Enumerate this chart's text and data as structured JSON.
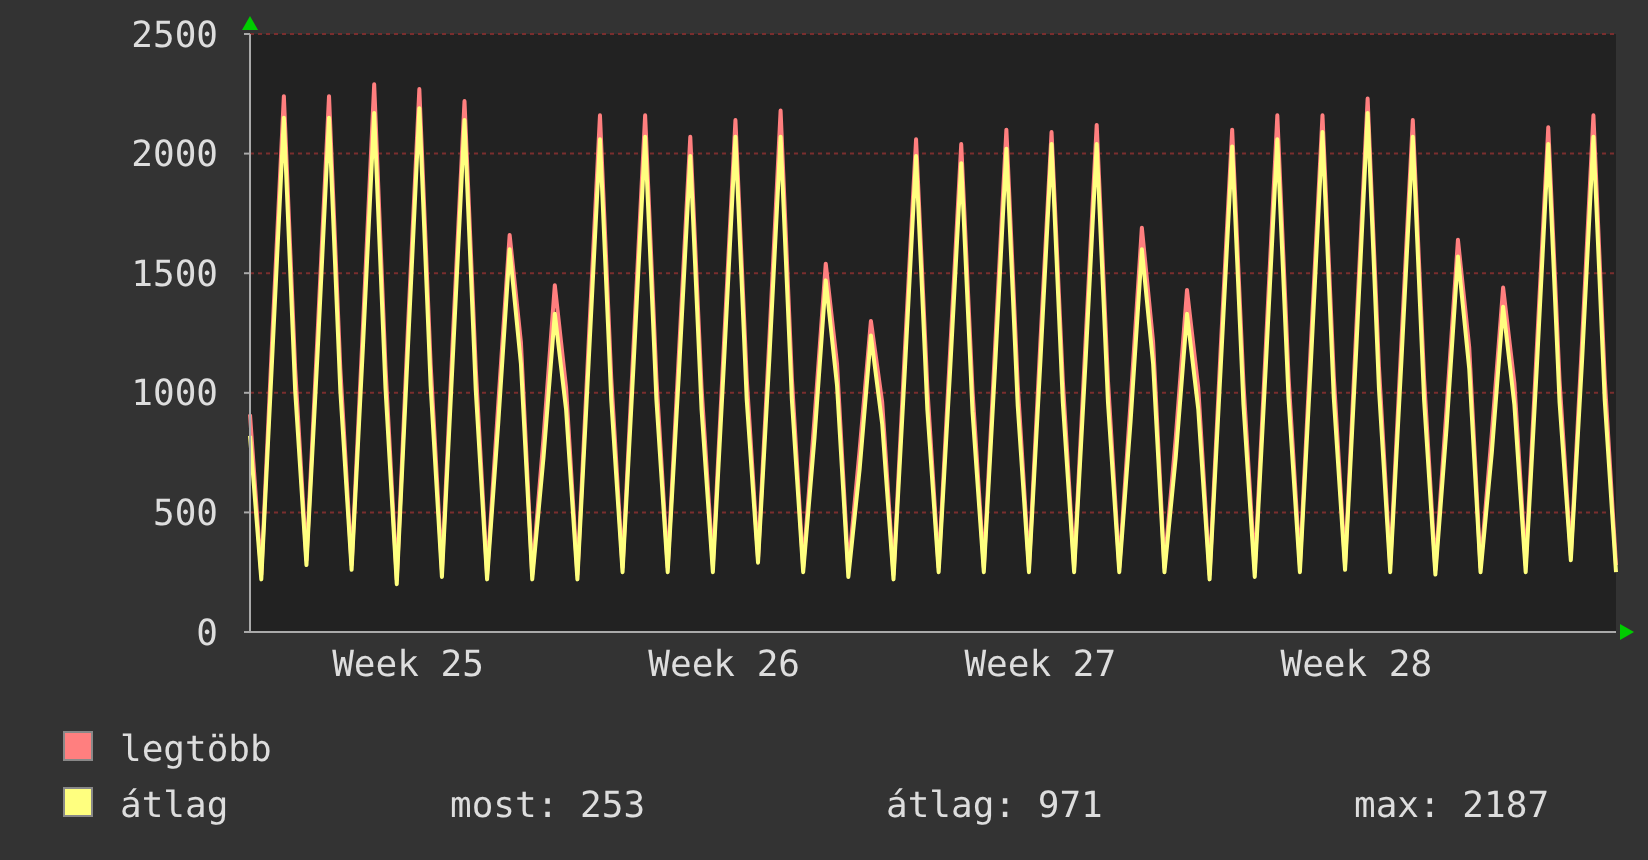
{
  "chart_data": {
    "type": "line",
    "categories": [
      null,
      null,
      null,
      null,
      null,
      null,
      null,
      null,
      null,
      null,
      null,
      null,
      null,
      null,
      "Week 25",
      null,
      null,
      null,
      null,
      null,
      null,
      null,
      null,
      null,
      null,
      null,
      null,
      null,
      null,
      null,
      null,
      null,
      null,
      null,
      null,
      null,
      null,
      null,
      null,
      null,
      null,
      null,
      "Week 26",
      null,
      null,
      null,
      null,
      null,
      null,
      null,
      null,
      null,
      null,
      null,
      null,
      null,
      null,
      null,
      null,
      null,
      null,
      null,
      null,
      null,
      null,
      null,
      null,
      null,
      null,
      null,
      "Week 27",
      null,
      null,
      null,
      null,
      null,
      null,
      null,
      null,
      null,
      null,
      null,
      null,
      null,
      null,
      null,
      null,
      null,
      null,
      null,
      null,
      null,
      null,
      null,
      null,
      null,
      null,
      null,
      "Week 28",
      null,
      null,
      null,
      null,
      null,
      null,
      null,
      null,
      null,
      null,
      null,
      null,
      null,
      null,
      null,
      null,
      null,
      null,
      null,
      null,
      null,
      null,
      null
    ],
    "series": [
      {
        "name": "legtöbb",
        "color": "#ff7f7f",
        "values": [
          910,
          240,
          1260,
          2240,
          1100,
          300,
          1260,
          2240,
          1100,
          280,
          1270,
          2290,
          1110,
          220,
          1280,
          2270,
          1120,
          260,
          1260,
          2220,
          1100,
          240,
          960,
          1660,
          1210,
          240,
          810,
          1450,
          1020,
          240,
          1210,
          2160,
          1060,
          270,
          1220,
          2160,
          1060,
          270,
          1170,
          2070,
          1020,
          280,
          1220,
          2140,
          1060,
          310,
          1220,
          2180,
          1060,
          270,
          890,
          1540,
          1120,
          260,
          760,
          1300,
          960,
          240,
          1170,
          2060,
          1020,
          270,
          1160,
          2040,
          1010,
          270,
          1190,
          2100,
          1040,
          270,
          1200,
          2090,
          1050,
          270,
          1200,
          2120,
          1050,
          270,
          960,
          1690,
          1210,
          270,
          810,
          1430,
          1020,
          240,
          1200,
          2100,
          1040,
          260,
          1210,
          2160,
          1060,
          280,
          1230,
          2160,
          1070,
          280,
          1270,
          2230,
          1110,
          280,
          1220,
          2140,
          1060,
          260,
          940,
          1640,
          1190,
          270,
          830,
          1440,
          1040,
          280,
          1200,
          2110,
          1050,
          320,
          1220,
          2160,
          1060,
          280
        ]
      },
      {
        "name": "átlag",
        "color": "#ffff7f",
        "values": [
          820,
          220,
          1180,
          2150,
          1010,
          280,
          1180,
          2150,
          1010,
          260,
          1190,
          2170,
          1020,
          200,
          1200,
          2190,
          1030,
          230,
          1180,
          2140,
          1010,
          220,
          880,
          1600,
          1120,
          220,
          730,
          1330,
          930,
          220,
          1130,
          2060,
          970,
          250,
          1140,
          2070,
          970,
          250,
          1090,
          1990,
          930,
          250,
          1140,
          2070,
          970,
          290,
          1140,
          2070,
          970,
          250,
          810,
          1470,
          1030,
          230,
          680,
          1240,
          870,
          220,
          1090,
          1990,
          930,
          250,
          1080,
          1960,
          920,
          250,
          1110,
          2020,
          950,
          250,
          1120,
          2040,
          960,
          250,
          1120,
          2040,
          960,
          250,
          880,
          1600,
          1120,
          250,
          730,
          1330,
          930,
          220,
          1120,
          2030,
          950,
          230,
          1130,
          2060,
          970,
          250,
          1150,
          2090,
          980,
          260,
          1190,
          2170,
          1020,
          250,
          1140,
          2070,
          970,
          240,
          860,
          1570,
          1100,
          250,
          750,
          1360,
          950,
          250,
          1120,
          2040,
          960,
          300,
          1140,
          2070,
          970,
          250
        ]
      }
    ],
    "ylim": [
      0,
      2500
    ],
    "yticks": [
      0,
      500,
      1000,
      1500,
      2000,
      2500
    ],
    "grid": "y",
    "legend": "bottom left",
    "marker": "none",
    "line_style": "solid",
    "annotations": [
      "most: 253",
      "átlag: 971",
      "max: 2187"
    ]
  }
}
